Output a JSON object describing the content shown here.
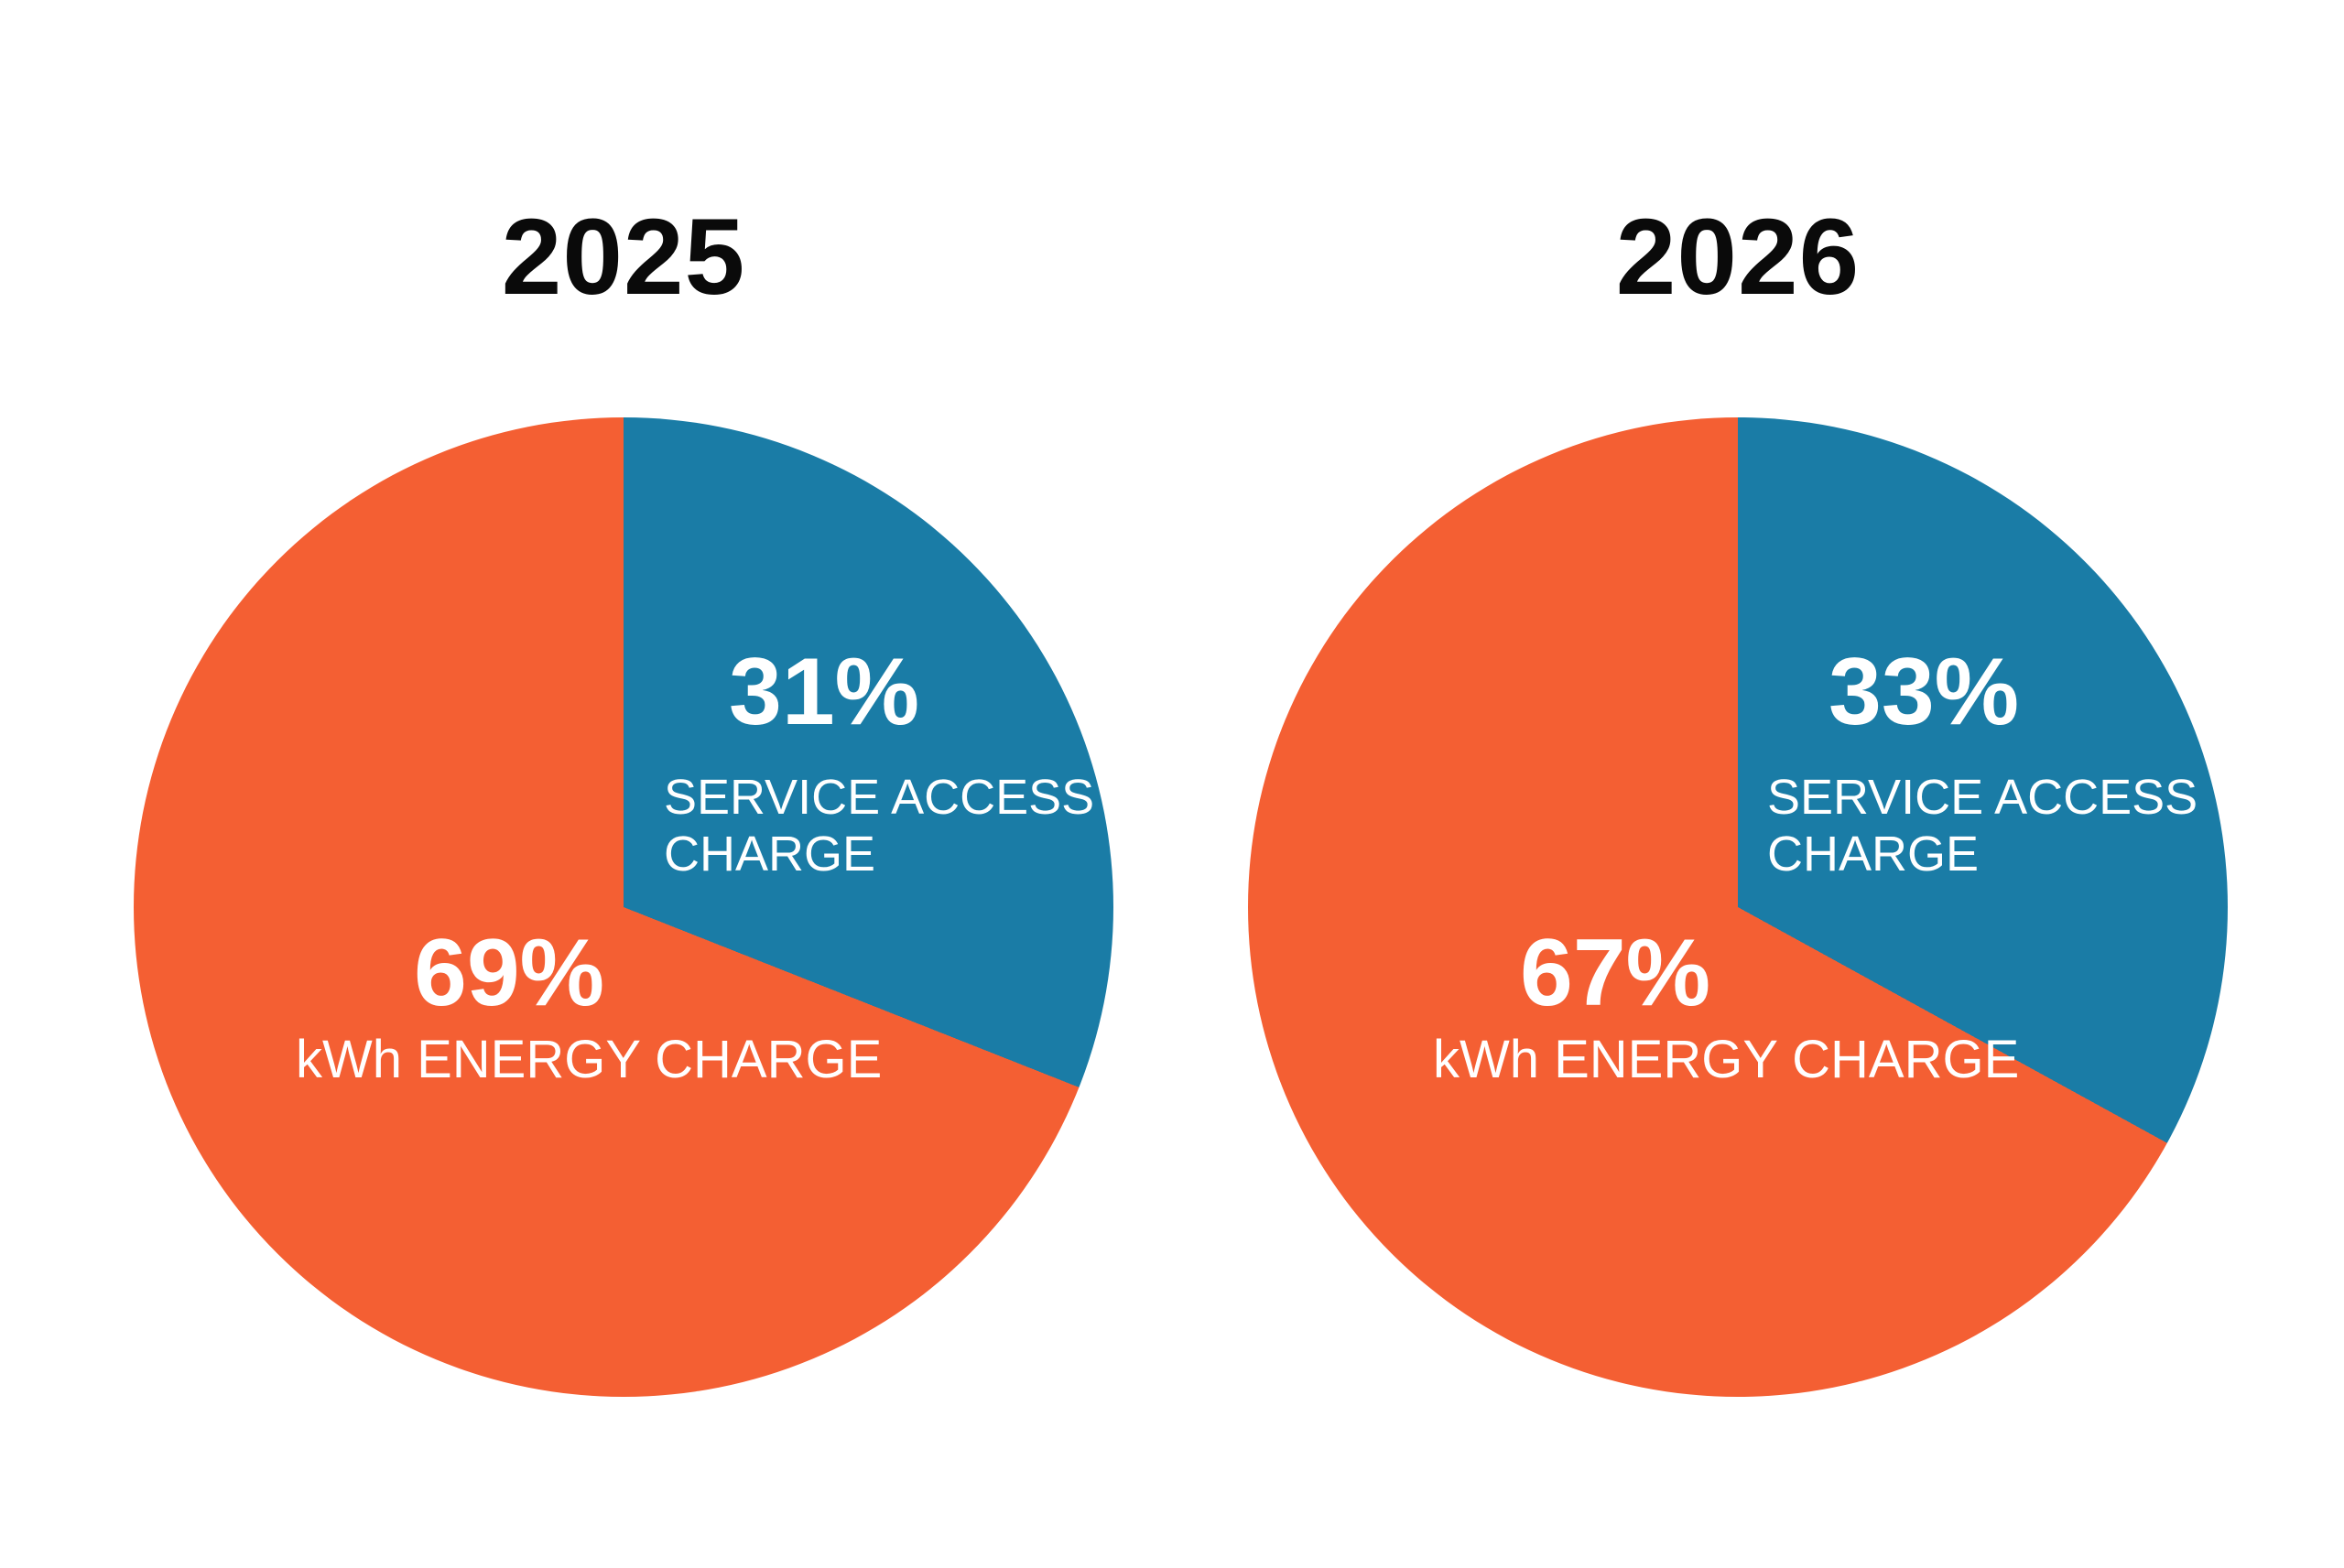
{
  "colors": {
    "orange": "#F45F33",
    "blue": "#1A7CA6",
    "title_text": "#0A0A0A",
    "slice_label_text": "#FFFFFF",
    "background": "#FFFFFF"
  },
  "chart_data": [
    {
      "type": "pie",
      "title": "2025",
      "start_angle_deg": 0,
      "direction": "clockwise",
      "legend_position": "inside",
      "slices": [
        {
          "label": "SERVICE ACCESS CHARGE",
          "value": 31,
          "color_name": "blue"
        },
        {
          "label": "kWh ENERGY CHARGE",
          "value": 69,
          "color_name": "orange"
        }
      ]
    },
    {
      "type": "pie",
      "title": "2026",
      "start_angle_deg": 0,
      "direction": "clockwise",
      "legend_position": "inside",
      "slices": [
        {
          "label": "SERVICE ACCESS CHARGE",
          "value": 33,
          "color_name": "blue"
        },
        {
          "label": "kWh ENERGY CHARGE",
          "value": 67,
          "color_name": "orange"
        }
      ]
    }
  ],
  "labels": {
    "pies": [
      {
        "title": "2025",
        "pct_blue": "31%",
        "blue_line1": "SERVICE ACCESS",
        "blue_line2": "CHARGE",
        "pct_orange": "69%",
        "orange_label": "kWh ENERGY CHARGE"
      },
      {
        "title": "2026",
        "pct_blue": "33%",
        "blue_line1": "SERVICE ACCESS",
        "blue_line2": "CHARGE",
        "pct_orange": "67%",
        "orange_label": "kWh ENERGY CHARGE"
      }
    ]
  }
}
